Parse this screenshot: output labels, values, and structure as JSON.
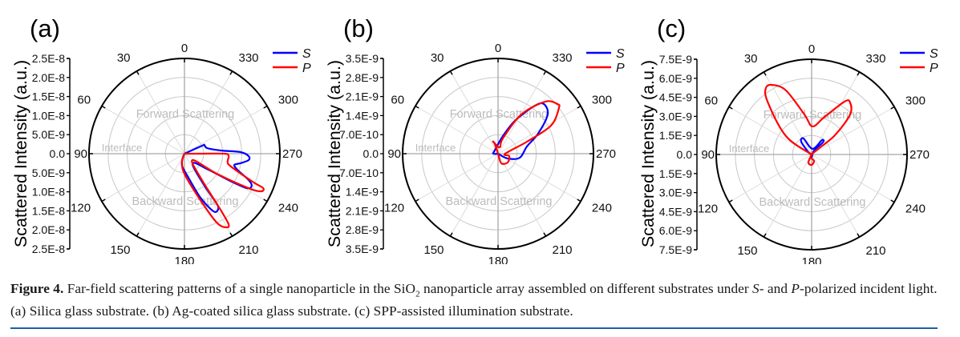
{
  "figure": {
    "number_label": "Figure 4.",
    "caption_parts": {
      "p1": " Far-field scattering patterns of a single nanoparticle in the SiO",
      "sub": "2",
      "p2": " nanoparticle array assembled on different substrates under ",
      "s": "S",
      "p3": "- and ",
      "p": "P",
      "p4": "-polarized incident light. (a) Silica glass substrate. (b) Ag-coated silica glass substrate. (c) SPP-assisted illumination substrate."
    },
    "rule_color": "#1f5fa6"
  },
  "chart_data": [
    {
      "type": "polar-line",
      "panel_label": "(a)",
      "ylabel": "Scattered Intensity (a.u.)",
      "radial_range": [
        0,
        2.5e-08
      ],
      "radial_ticks_top": [
        "2.5E-8",
        "2.0E-8",
        "1.5E-8",
        "1.0E-8",
        "5.0E-9",
        "0.0",
        "5.0E-9",
        "1.0E-8",
        "1.5E-8",
        "2.0E-8",
        "2.5E-8"
      ],
      "angle_ticks": [
        "0",
        "30",
        "60",
        "90",
        "120",
        "150",
        "180",
        "210",
        "240",
        "270",
        "300",
        "330"
      ],
      "angle_direction": "counterclockwise, 0 at top",
      "region_labels": [
        "Forward Scattering",
        "Interface",
        "Backward Scattering"
      ],
      "grid": true,
      "legend": {
        "placement": "top-right",
        "entries": [
          "S",
          "P"
        ]
      },
      "series": [
        {
          "name": "S",
          "color": "#0000ff",
          "points": [
            [
              0,
              0
            ],
            [
              294.4,
              5.1e-09
            ],
            [
              293.7,
              5.7e-09
            ],
            [
              284,
              6.1e-09
            ],
            [
              275.1,
              9.5e-09
            ],
            [
              271.6,
              1.47e-08
            ],
            [
              267.9,
              1.68e-08
            ],
            [
              264.3,
              1.69e-08
            ],
            [
              260.3,
              1.49e-08
            ],
            [
              257.3,
              1.34e-08
            ],
            [
              253.1,
              1.45e-08
            ],
            [
              247.6,
              1.82e-08
            ],
            [
              244.5,
              1.95e-08
            ],
            [
              241.1,
              1.87e-08
            ],
            [
              239,
              1.35e-08
            ],
            [
              236.3,
              7.6e-09
            ],
            [
              219.8,
              3.3e-09
            ],
            [
              212,
              9.9e-09
            ],
            [
              212.8,
              1.55e-08
            ],
            [
              211,
              1.71e-08
            ],
            [
              206.6,
              1.69e-08
            ],
            [
              200,
              1.23e-08
            ],
            [
              189.5,
              6.4e-09
            ],
            [
              168.7,
              3.2e-09
            ],
            [
              158,
              1.1e-09
            ],
            [
              0,
              0
            ]
          ]
        },
        {
          "name": "P",
          "color": "#ff0000",
          "points": [
            [
              0,
              0
            ],
            [
              270,
              4.2e-09
            ],
            [
              270,
              1.05e-08
            ],
            [
              266.9,
              1.16e-08
            ],
            [
              259.5,
              1.15e-08
            ],
            [
              254.6,
              1.26e-08
            ],
            [
              247.6,
              1.93e-08
            ],
            [
              246.3,
              2.25e-08
            ],
            [
              243.7,
              2.23e-08
            ],
            [
              241.7,
              1.91e-08
            ],
            [
              238,
              9.9e-09
            ],
            [
              231.3,
              2.7e-09
            ],
            [
              213.7,
              7.6e-09
            ],
            [
              212.7,
              1.75e-08
            ],
            [
              212,
              2.18e-08
            ],
            [
              209.5,
              2.22e-08
            ],
            [
              205,
              1.99e-08
            ],
            [
              198.1,
              1.22e-08
            ],
            [
              180,
              5.3e-09
            ],
            [
              163.3,
              2.2e-09
            ],
            [
              0,
              0
            ]
          ]
        }
      ]
    },
    {
      "type": "polar-line",
      "panel_label": "(b)",
      "ylabel": "Scattered Intensity (a.u.)",
      "radial_range": [
        0,
        3.5e-09
      ],
      "radial_ticks_top": [
        "3.5E-9",
        "2.8E-9",
        "2.1E-9",
        "1.4E-9",
        "7.0E-10",
        "0.0",
        "7.0E-10",
        "1.4E-9",
        "2.1E-9",
        "2.8E-9",
        "3.5E-9"
      ],
      "angle_ticks": [
        "0",
        "30",
        "60",
        "90",
        "120",
        "150",
        "180",
        "210",
        "240",
        "270",
        "300",
        "330"
      ],
      "angle_direction": "counterclockwise, 0 at top",
      "region_labels": [
        "Forward Scattering",
        "Interface",
        "Backward Scattering"
      ],
      "grid": true,
      "legend": {
        "placement": "top-right",
        "entries": [
          "S",
          "P"
        ]
      },
      "series": [
        {
          "name": "S",
          "color": "#0000ff",
          "points": [
            [
              0,
              0
            ],
            [
              90,
              1.8e-10
            ],
            [
              45,
              1.7e-10
            ],
            [
              344.7,
              6.7e-10
            ],
            [
              332.4,
              1.39e-09
            ],
            [
              322.5,
              2.22e-09
            ],
            [
              317.4,
              2.48e-09
            ],
            [
              308.3,
              2.32e-09
            ],
            [
              296.6,
              1.64e-09
            ],
            [
              284,
              1.09e-09
            ],
            [
              259.5,
              8.1e-10
            ],
            [
              243.4,
              3.9e-10
            ],
            [
              0,
              0
            ]
          ]
        },
        {
          "name": "P",
          "color": "#ff0000",
          "points": [
            [
              0,
              0
            ],
            [
              18.4,
              3.7e-10
            ],
            [
              21.8,
              4.8e-10
            ],
            [
              346,
              2.4e-10
            ],
            [
              342.5,
              5.9e-10
            ],
            [
              329.4,
              1.67e-09
            ],
            [
              317.8,
              2.58e-09
            ],
            [
              310,
              2.84e-09
            ],
            [
              306.9,
              2.79e-09
            ],
            [
              298,
              2.2e-09
            ],
            [
              292.6,
              1.15e-09
            ],
            [
              270,
              2.6e-10
            ],
            [
              258,
              4.2e-10
            ],
            [
              227.5,
              4.8e-10
            ],
            [
              198.4,
              3.7e-10
            ],
            [
              0,
              0
            ]
          ]
        }
      ]
    },
    {
      "type": "polar-line",
      "panel_label": "(c)",
      "ylabel": "Scattered Intensity (a.u.)",
      "radial_range": [
        0,
        7.5e-09
      ],
      "radial_ticks_top": [
        "7.5E-9",
        "6.0E-9",
        "4.5E-9",
        "3.0E-9",
        "1.5E-9",
        "0.0",
        "1.5E-9",
        "3.0E-9",
        "4.5E-9",
        "6.0E-9",
        "7.5E-9"
      ],
      "angle_ticks": [
        "0",
        "30",
        "60",
        "90",
        "120",
        "150",
        "180",
        "210",
        "240",
        "270",
        "300",
        "330"
      ],
      "angle_direction": "counterclockwise, 0 at top",
      "region_labels": [
        "Forward Scattering",
        "Interface",
        "Backward Scattering"
      ],
      "grid": true,
      "legend": {
        "placement": "top-right",
        "entries": [
          "S",
          "P"
        ]
      },
      "series": [
        {
          "name": "S",
          "color": "#0000ff",
          "points": [
            [
              0,
              0
            ],
            [
              53.1,
              3.2e-10
            ],
            [
              39.1,
              1.3e-09
            ],
            [
              26.6,
              1.41e-09
            ],
            [
              351.9,
              4.5e-10
            ],
            [
              324.2,
              1.4e-09
            ],
            [
              317,
              1.29e-09
            ],
            [
              329,
              3.7e-10
            ],
            [
              180,
              2.5e-10
            ],
            [
              0,
              0
            ]
          ]
        },
        {
          "name": "P",
          "color": "#ff0000",
          "points": [
            [
              0,
              0
            ],
            [
              54.3,
              2.48e-09
            ],
            [
              39.8,
              5.41e-09
            ],
            [
              34.5,
              6.35e-09
            ],
            [
              29.4,
              6.29e-09
            ],
            [
              21.8,
              5.43e-09
            ],
            [
              10.2,
              3.2e-09
            ],
            [
              358.4,
              2.21e-09
            ],
            [
              341.9,
              3.05e-09
            ],
            [
              328.2,
              4.9e-09
            ],
            [
              323.6,
              5.09e-09
            ],
            [
              316.2,
              4.37e-09
            ],
            [
              309.4,
              2.28e-09
            ],
            [
              0,
              0
            ],
            [
              200.6,
              5.4e-10
            ],
            [
              180,
              8.2e-10
            ],
            [
              158.2,
              6.8e-10
            ],
            [
              0,
              0
            ]
          ]
        }
      ]
    }
  ]
}
